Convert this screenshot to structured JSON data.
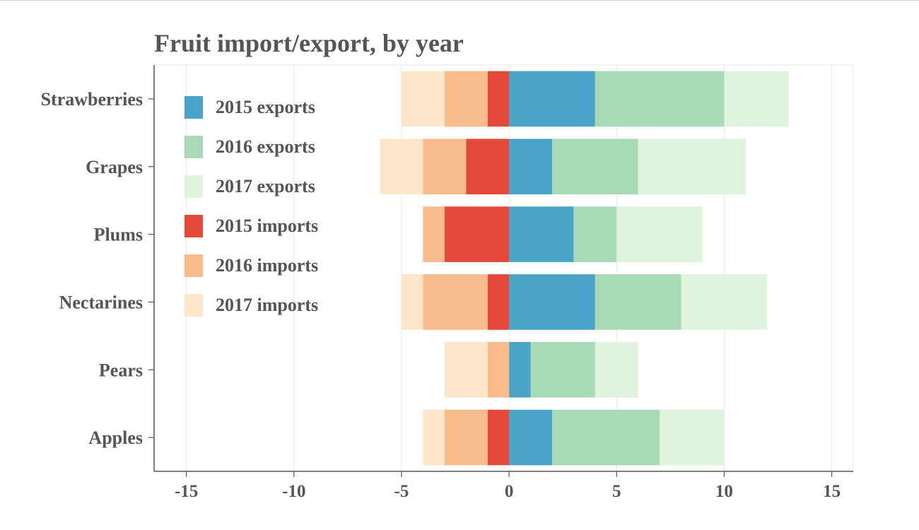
{
  "chart_data": {
    "type": "bar",
    "orientation": "horizontal",
    "stacked": "diverging",
    "title": "Fruit import/export, by year",
    "categories": [
      "Strawberries",
      "Grapes",
      "Plums",
      "Nectarines",
      "Pears",
      "Apples"
    ],
    "series": [
      {
        "name": "2015 exports",
        "color": "#4aa3c8",
        "values": [
          4,
          2,
          3,
          4,
          1,
          2
        ]
      },
      {
        "name": "2016 exports",
        "color": "#a8dab5",
        "values": [
          6,
          4,
          2,
          4,
          3,
          5
        ]
      },
      {
        "name": "2017 exports",
        "color": "#e0f3de",
        "values": [
          3,
          5,
          4,
          4,
          2,
          3
        ]
      },
      {
        "name": "2015 imports",
        "color": "#e34a3a",
        "values": [
          -1,
          -2,
          -3,
          -1,
          0,
          -1
        ]
      },
      {
        "name": "2016 imports",
        "color": "#f9bb8a",
        "values": [
          -2,
          -2,
          -1,
          -3,
          -1,
          -2
        ]
      },
      {
        "name": "2017 imports",
        "color": "#fde6c9",
        "values": [
          -2,
          -2,
          0,
          -1,
          -2,
          -1
        ]
      }
    ],
    "xlim": [
      -16.5,
      16
    ],
    "xticks": [
      -15,
      -10,
      -5,
      0,
      5,
      10,
      15
    ],
    "x_tick_labels": [
      "-15",
      "-10",
      "-5",
      "0",
      "5",
      "10",
      "15"
    ],
    "grid": "vertical",
    "legend_position": "top-left"
  }
}
